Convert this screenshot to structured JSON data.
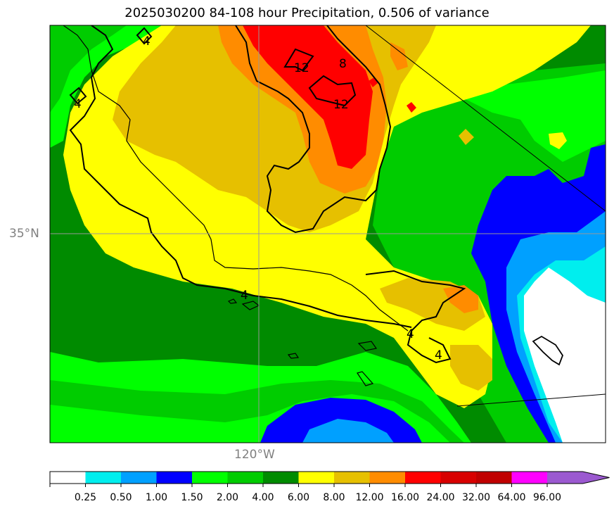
{
  "title": "2025030200 84-108 hour Precipitation, 0.506 of variance",
  "axes": {
    "lat_label": "35°N",
    "lon_label": "120°W"
  },
  "contour_labels": [
    "4",
    "4",
    "12",
    "8",
    "12",
    "4",
    "4",
    "4"
  ],
  "colorbar": {
    "levels": [
      "0.25",
      "0.50",
      "1.00",
      "1.50",
      "2.00",
      "4.00",
      "6.00",
      "8.00",
      "12.00",
      "16.00",
      "24.00",
      "32.00",
      "64.00",
      "96.00"
    ],
    "colors": [
      "#ffffff",
      "#00eeee",
      "#00a0ff",
      "#0000ff",
      "#00ff00",
      "#00cc00",
      "#008b00",
      "#ffff00",
      "#e6c000",
      "#ff8c00",
      "#ff0000",
      "#d80000",
      "#c00000",
      "#ff00ff",
      "#9b59d0"
    ],
    "extend": "max"
  },
  "colors": {
    "white": "#ffffff",
    "cyan": "#00eeee",
    "lightblue": "#00a0ff",
    "blue": "#0000ff",
    "lime": "#00ff00",
    "green": "#00cc00",
    "darkgreen": "#008b00",
    "yellow": "#ffff00",
    "gold": "#e6c000",
    "orange": "#ff8c00",
    "red": "#ff0000"
  }
}
